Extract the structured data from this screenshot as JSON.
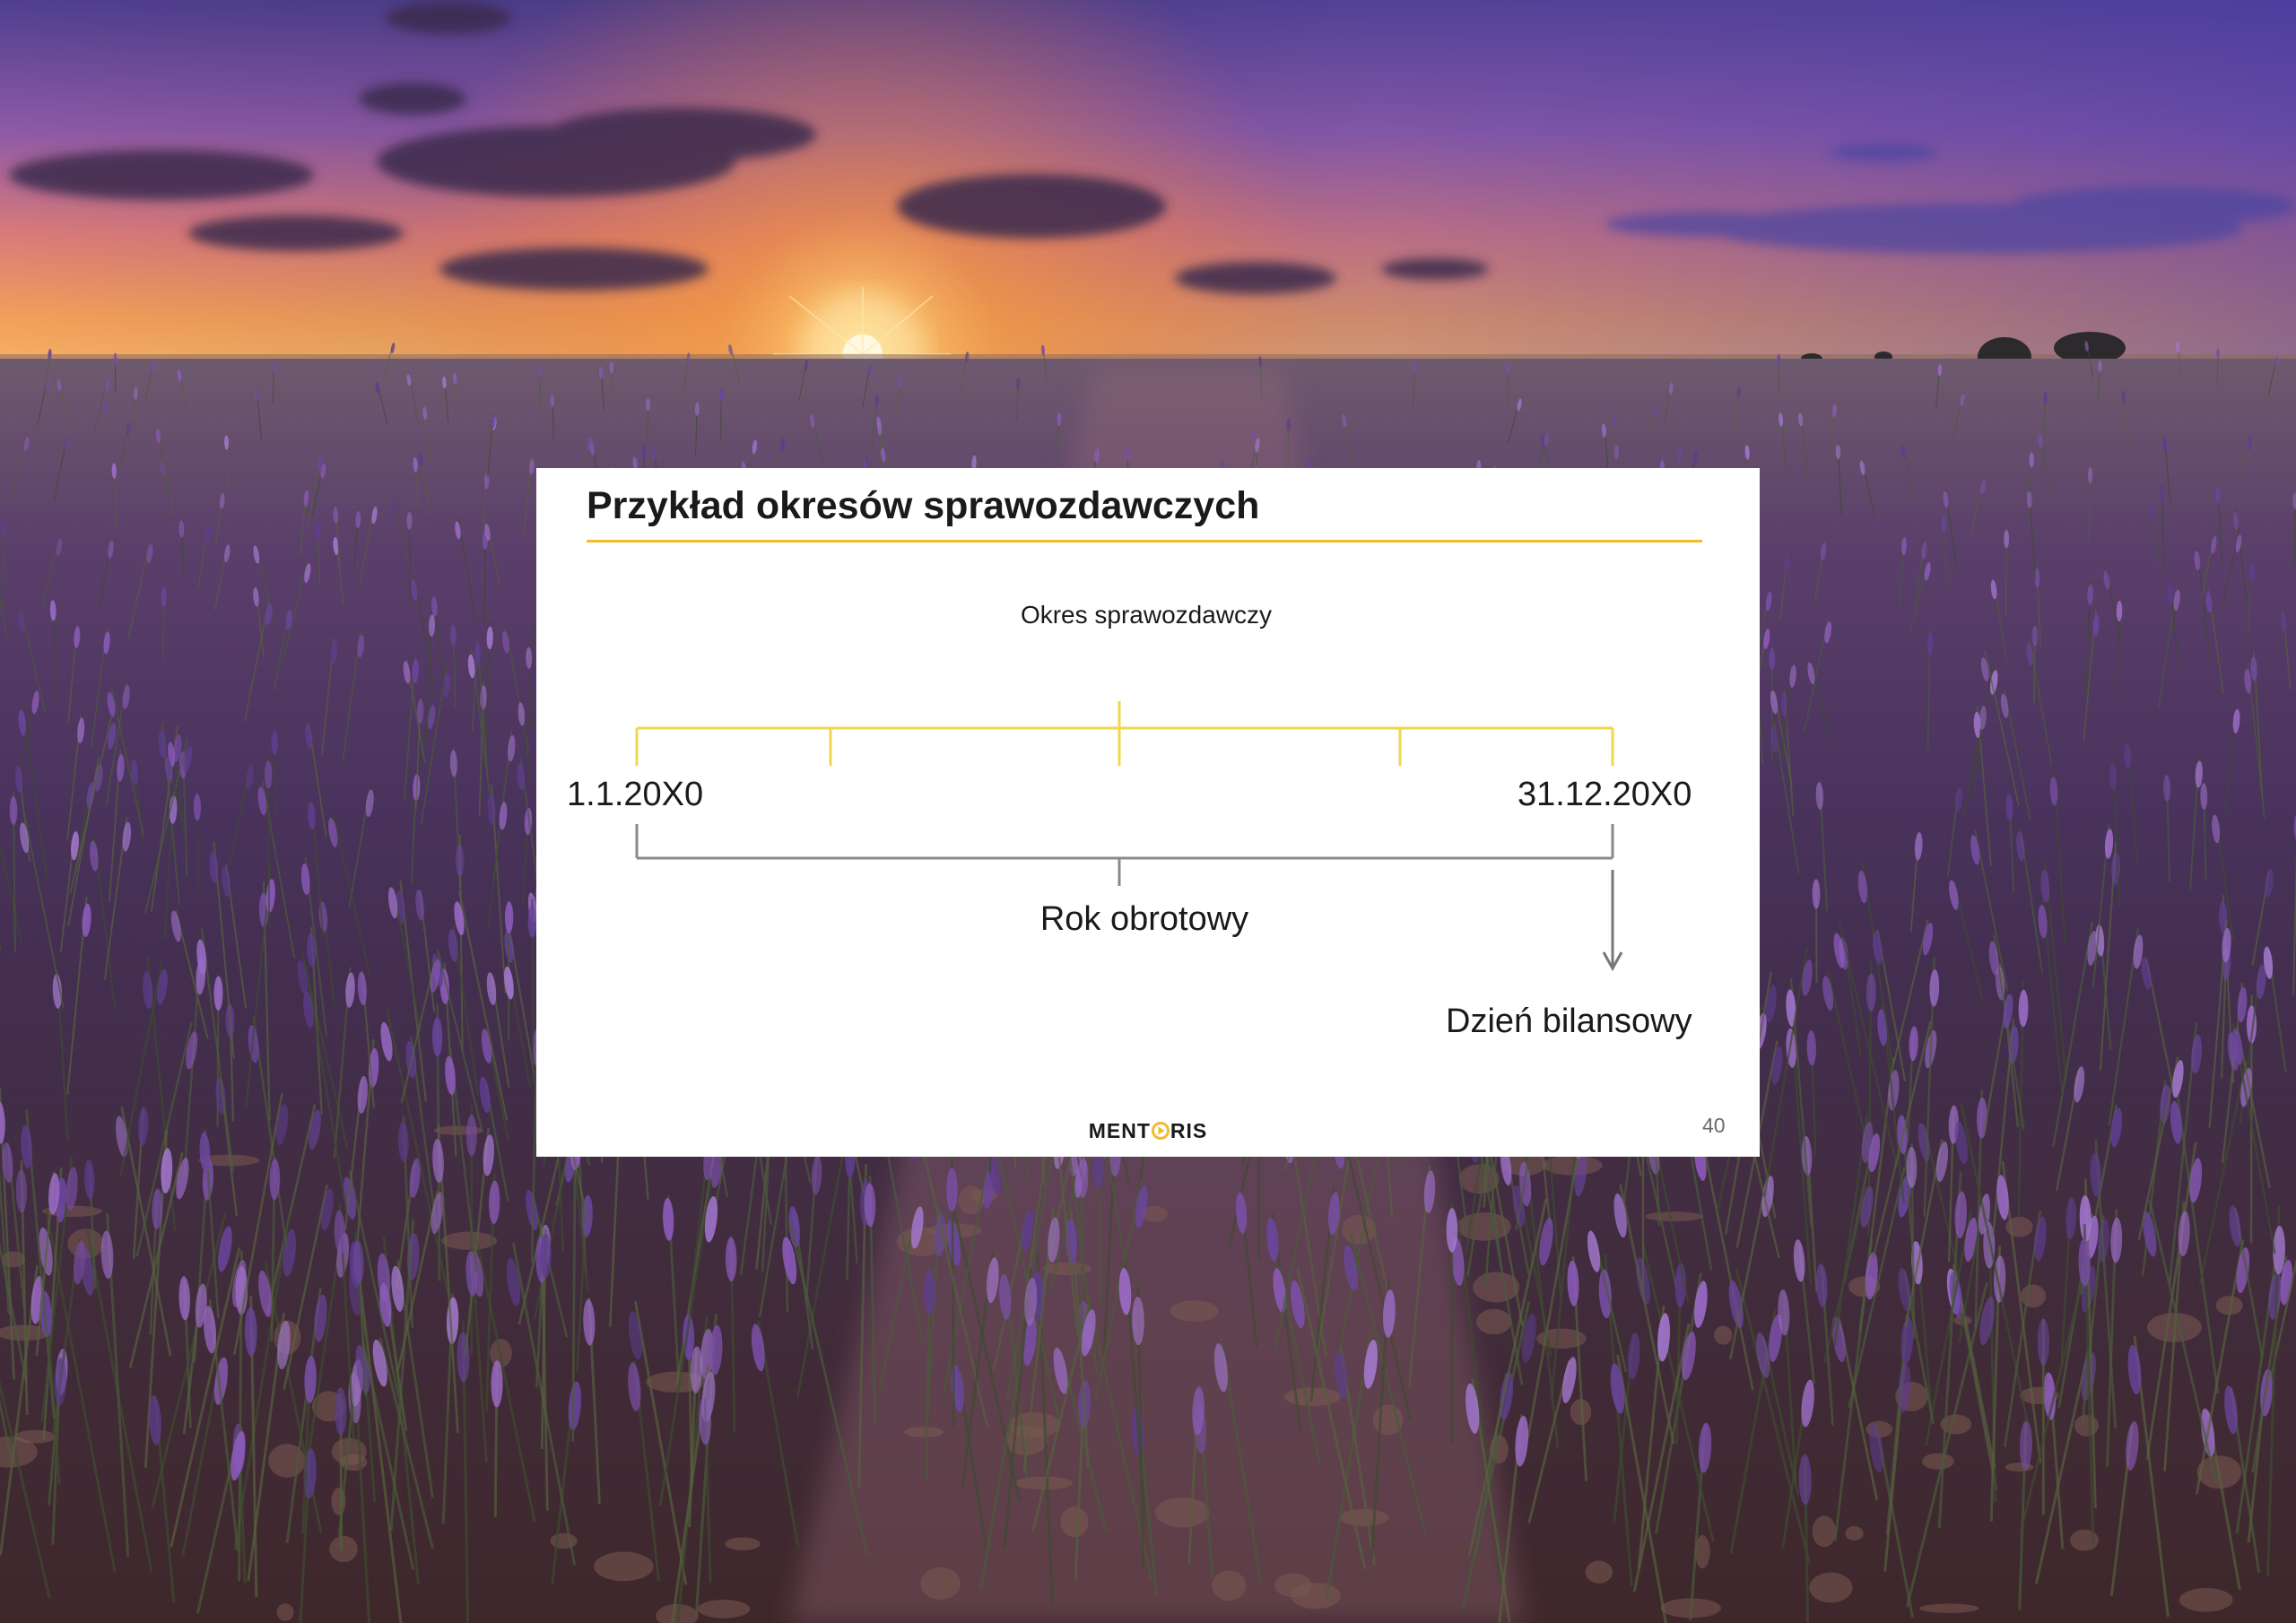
{
  "slide": {
    "title": "Przykład okresów sprawozdawczych",
    "page_number": "40",
    "logo": {
      "text_before": "MENT",
      "text_after": "RIS",
      "mark": "play-triangle-icon",
      "accent": "#f2bc2c"
    }
  },
  "diagram": {
    "top_label": "Okres sprawozdawczy",
    "start_date": "1.1.20X0",
    "end_date": "31.12.20X0",
    "bottom_label": "Rok obrotowy",
    "arrow_label": "Dzień bilansowy",
    "colors": {
      "upper_bracket": "#f2d64b",
      "lower_bracket": "#8a8a8a",
      "arrow": "#777777"
    }
  },
  "background": {
    "scene": "lavender-field-sunset"
  }
}
